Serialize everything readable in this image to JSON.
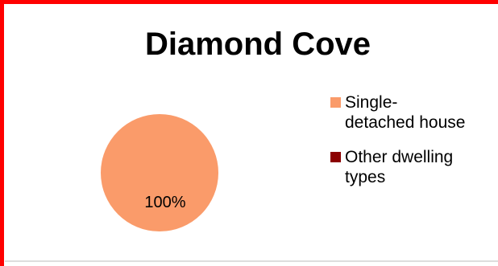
{
  "page": {
    "top_fragment_text": "",
    "frame_color": "#ff0000"
  },
  "chart_data": {
    "type": "pie",
    "title": "Diamond Cove",
    "series": [
      {
        "name": "Single-detached house",
        "value": 100,
        "label": "100%",
        "color": "#fa9b6a"
      },
      {
        "name": "Other dwelling types",
        "value": 0,
        "label": "",
        "color": "#8b0000"
      }
    ],
    "legend": {
      "position": "right",
      "entries": [
        "Single-detached house",
        "Other dwelling types"
      ]
    }
  }
}
